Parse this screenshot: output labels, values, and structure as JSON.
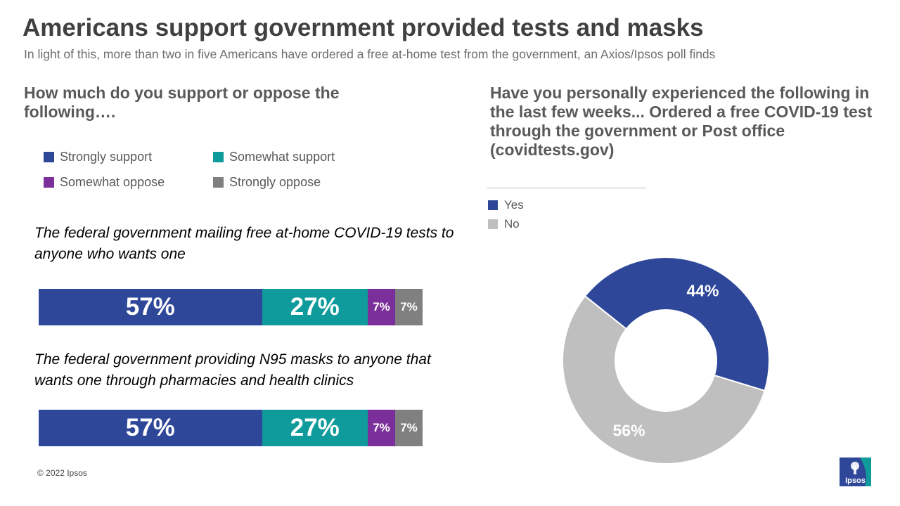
{
  "header": {
    "title": "Americans support government provided tests and masks",
    "subtitle": "In light of this, more than two in five Americans have ordered a free at-home test from the government,  an Axios/Ipsos poll finds"
  },
  "left_panel": {
    "question": "How much do you support or oppose the following….",
    "legend": [
      {
        "label": "Strongly support",
        "color": "#2e4799"
      },
      {
        "label": "Somewhat support",
        "color": "#0f9b9b"
      },
      {
        "label": "Somewhat oppose",
        "color": "#7b2f9a"
      },
      {
        "label": "Strongly oppose",
        "color": "#808080"
      }
    ],
    "statements": [
      "The federal government mailing free at-home COVID-19 tests to anyone who wants one",
      "The federal government providing N95 masks to anyone that wants one through pharmacies and health clinics"
    ]
  },
  "right_panel": {
    "question": "Have you personally experienced the following in the last few weeks... Ordered a free COVID-19 test through the government or Post office (covidtests.gov)",
    "legend": [
      {
        "label": "Yes",
        "color": "#2e4799"
      },
      {
        "label": "No",
        "color": "#bfbfbf"
      }
    ]
  },
  "chart_data": [
    {
      "type": "bar",
      "orientation": "horizontal-stacked",
      "categories": [
        "The federal government mailing free at-home COVID-19 tests to anyone who wants one",
        "The federal government providing N95 masks to anyone that wants one through pharmacies and health clinics"
      ],
      "series": [
        {
          "name": "Strongly support",
          "color": "#2e4799",
          "values": [
            57,
            57
          ],
          "labels": [
            "57%",
            "57%"
          ]
        },
        {
          "name": "Somewhat support",
          "color": "#0f9b9b",
          "values": [
            27,
            27
          ],
          "labels": [
            "27%",
            "27%"
          ]
        },
        {
          "name": "Somewhat oppose",
          "color": "#7b2f9a",
          "values": [
            7,
            7
          ],
          "labels": [
            "7%",
            "7%"
          ]
        },
        {
          "name": "Strongly oppose",
          "color": "#808080",
          "values": [
            7,
            7
          ],
          "labels": [
            "7%",
            "7%"
          ]
        }
      ],
      "legend": "top"
    },
    {
      "type": "pie",
      "style": "donut",
      "categories": [
        "Yes",
        "No"
      ],
      "values": [
        44,
        56
      ],
      "labels": [
        "44%",
        "56%"
      ],
      "colors": [
        "#2e4799",
        "#bfbfbf"
      ],
      "legend": "top-left"
    }
  ],
  "footer": {
    "copyright": "© 2022 Ipsos",
    "logo_text": "Ipsos"
  }
}
